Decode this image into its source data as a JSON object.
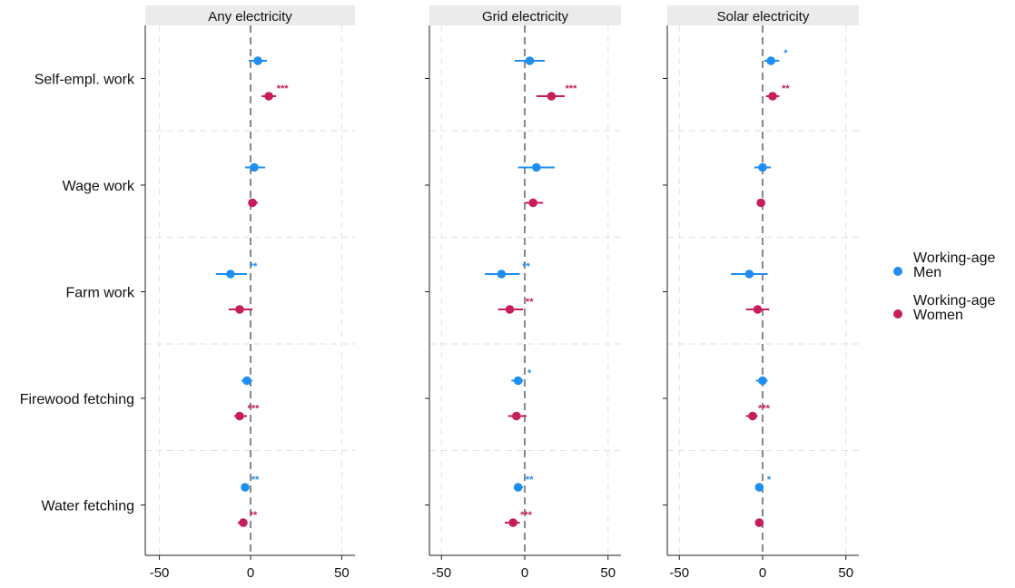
{
  "chart_data": {
    "type": "scatter",
    "subtype": "coefficient plot with confidence intervals",
    "categories": [
      "Self-empl. work",
      "Wage work",
      "Farm work",
      "Firewood fetching",
      "Water fetching"
    ],
    "x_ticks": [
      "-50",
      "0",
      "50"
    ],
    "x_tick_values": [
      -50,
      0,
      50
    ],
    "xlim": [
      -57,
      58
    ],
    "grid": true,
    "legend_position": "right",
    "colors": {
      "men": "#1f8ef0",
      "women": "#c81d5c",
      "facet_header_bg": "#ebebeb",
      "grid": "#e2e2e2",
      "zero_line": "#555555"
    },
    "legend": [
      {
        "key": "men",
        "label_line1": "Working-age",
        "label_line2": "Men",
        "color": "#1f8ef0"
      },
      {
        "key": "women",
        "label_line1": "Working-age",
        "label_line2": "Women",
        "color": "#c81d5c"
      }
    ],
    "panels": [
      {
        "title": "Any electricity",
        "men": [
          {
            "est": 4,
            "lo": -1,
            "hi": 9,
            "stars": ""
          },
          {
            "est": 2,
            "lo": -3,
            "hi": 8,
            "stars": ""
          },
          {
            "est": -11,
            "lo": -19,
            "hi": -2,
            "stars": "**"
          },
          {
            "est": -2,
            "lo": -5,
            "hi": 1,
            "stars": ""
          },
          {
            "est": -3,
            "lo": -5,
            "hi": -1,
            "stars": "**"
          }
        ],
        "women": [
          {
            "est": 10,
            "lo": 6,
            "hi": 14,
            "stars": "***"
          },
          {
            "est": 1,
            "lo": -1,
            "hi": 4,
            "stars": ""
          },
          {
            "est": -6,
            "lo": -12,
            "hi": 1,
            "stars": ""
          },
          {
            "est": -6,
            "lo": -9,
            "hi": -2,
            "stars": "***"
          },
          {
            "est": -4,
            "lo": -7,
            "hi": -2,
            "stars": "**"
          }
        ]
      },
      {
        "title": "Grid electricity",
        "men": [
          {
            "est": 3,
            "lo": -6,
            "hi": 12,
            "stars": ""
          },
          {
            "est": 7,
            "lo": -4,
            "hi": 18,
            "stars": ""
          },
          {
            "est": -14,
            "lo": -24,
            "hi": -3,
            "stars": "**"
          },
          {
            "est": -4,
            "lo": -8,
            "hi": -1,
            "stars": "*"
          },
          {
            "est": -4,
            "lo": -6,
            "hi": -1,
            "stars": "**"
          }
        ],
        "women": [
          {
            "est": 16,
            "lo": 7,
            "hi": 24,
            "stars": "***"
          },
          {
            "est": 5,
            "lo": 0,
            "hi": 11,
            "stars": ""
          },
          {
            "est": -9,
            "lo": -16,
            "hi": -1,
            "stars": "**"
          },
          {
            "est": -5,
            "lo": -10,
            "hi": 1,
            "stars": ""
          },
          {
            "est": -7,
            "lo": -12,
            "hi": -3,
            "stars": "***"
          }
        ]
      },
      {
        "title": "Solar electricity",
        "men": [
          {
            "est": 5,
            "lo": 1,
            "hi": 10,
            "stars": "*"
          },
          {
            "est": 0,
            "lo": -5,
            "hi": 5,
            "stars": ""
          },
          {
            "est": -8,
            "lo": -19,
            "hi": 3,
            "stars": ""
          },
          {
            "est": 0,
            "lo": -4,
            "hi": 3,
            "stars": ""
          },
          {
            "est": -2,
            "lo": -4,
            "hi": 0,
            "stars": "*"
          }
        ],
        "women": [
          {
            "est": 6,
            "lo": 2,
            "hi": 10,
            "stars": "**"
          },
          {
            "est": -1,
            "lo": -2,
            "hi": 1,
            "stars": ""
          },
          {
            "est": -3,
            "lo": -10,
            "hi": 4,
            "stars": ""
          },
          {
            "est": -6,
            "lo": -10,
            "hi": -3,
            "stars": "***"
          },
          {
            "est": -2,
            "lo": -4,
            "hi": 0,
            "stars": ""
          }
        ]
      }
    ]
  }
}
